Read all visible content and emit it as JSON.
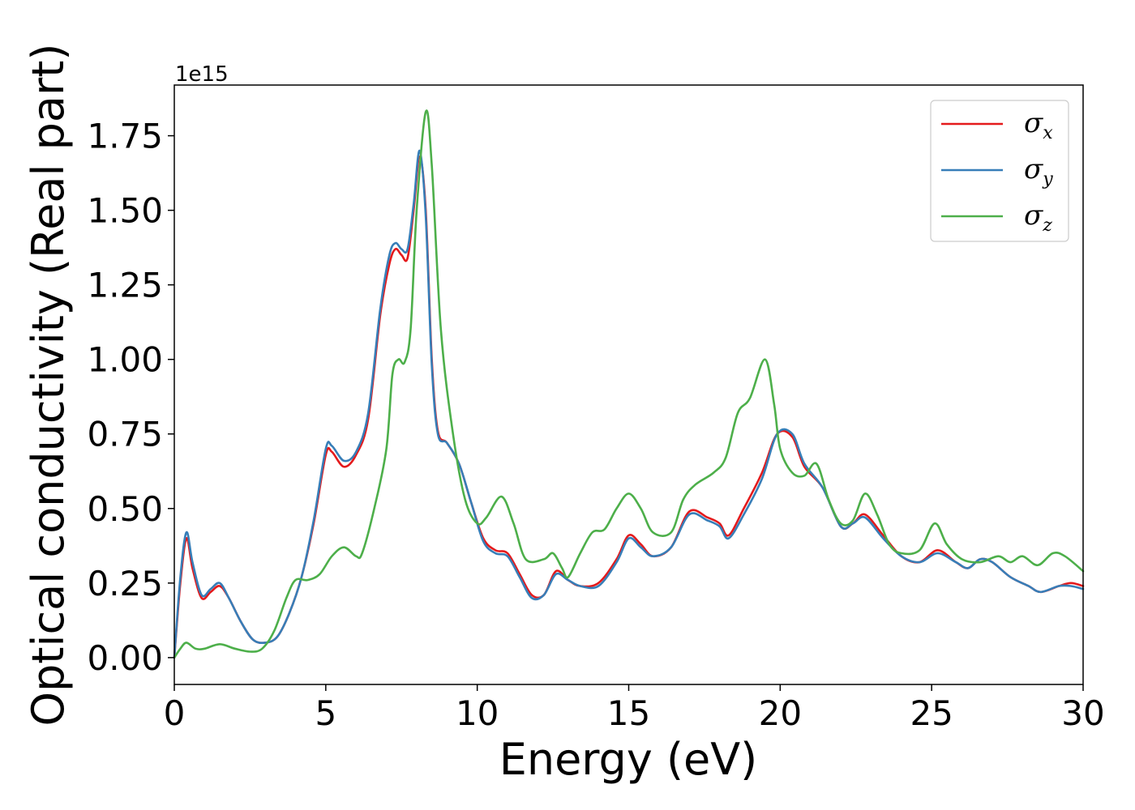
{
  "chart_data": {
    "type": "line",
    "xlabel": "Energy (eV)",
    "ylabel": "Optical conductivity (Real part)",
    "y_offset_text": "1e15",
    "xlim": [
      0,
      30
    ],
    "ylim": [
      -0.09,
      1.92
    ],
    "xticks": [
      0,
      5,
      10,
      15,
      20,
      25,
      30
    ],
    "xtick_labels": [
      "0",
      "5",
      "10",
      "15",
      "20",
      "25",
      "30"
    ],
    "yticks": [
      0.0,
      0.25,
      0.5,
      0.75,
      1.0,
      1.25,
      1.5,
      1.75
    ],
    "ytick_labels": [
      "0.00",
      "0.25",
      "0.50",
      "0.75",
      "1.00",
      "1.25",
      "1.50",
      "1.75"
    ],
    "grid": false,
    "legend_position": "top-right",
    "series": [
      {
        "name": "σx",
        "symbol": "σ",
        "subscript": "x",
        "color": "#e41a1c",
        "points": [
          [
            0,
            0.0
          ],
          [
            0.2,
            0.25
          ],
          [
            0.4,
            0.4
          ],
          [
            0.6,
            0.3
          ],
          [
            0.9,
            0.2
          ],
          [
            1.2,
            0.22
          ],
          [
            1.5,
            0.24
          ],
          [
            1.8,
            0.2
          ],
          [
            2.2,
            0.12
          ],
          [
            2.6,
            0.06
          ],
          [
            3.0,
            0.05
          ],
          [
            3.4,
            0.07
          ],
          [
            3.8,
            0.15
          ],
          [
            4.2,
            0.27
          ],
          [
            4.6,
            0.45
          ],
          [
            5.0,
            0.68
          ],
          [
            5.2,
            0.69
          ],
          [
            5.6,
            0.64
          ],
          [
            6.0,
            0.68
          ],
          [
            6.4,
            0.8
          ],
          [
            6.8,
            1.15
          ],
          [
            7.1,
            1.32
          ],
          [
            7.3,
            1.37
          ],
          [
            7.5,
            1.35
          ],
          [
            7.7,
            1.34
          ],
          [
            7.9,
            1.5
          ],
          [
            8.1,
            1.68
          ],
          [
            8.3,
            1.5
          ],
          [
            8.5,
            1.0
          ],
          [
            8.7,
            0.76
          ],
          [
            9.0,
            0.72
          ],
          [
            9.4,
            0.65
          ],
          [
            9.8,
            0.52
          ],
          [
            10.2,
            0.4
          ],
          [
            10.6,
            0.36
          ],
          [
            11.0,
            0.35
          ],
          [
            11.4,
            0.28
          ],
          [
            11.8,
            0.21
          ],
          [
            12.2,
            0.21
          ],
          [
            12.6,
            0.29
          ],
          [
            13.0,
            0.26
          ],
          [
            13.4,
            0.24
          ],
          [
            14.0,
            0.25
          ],
          [
            14.6,
            0.33
          ],
          [
            15.0,
            0.41
          ],
          [
            15.4,
            0.38
          ],
          [
            15.8,
            0.34
          ],
          [
            16.4,
            0.37
          ],
          [
            17.0,
            0.49
          ],
          [
            17.6,
            0.47
          ],
          [
            18.0,
            0.45
          ],
          [
            18.3,
            0.41
          ],
          [
            18.8,
            0.5
          ],
          [
            19.4,
            0.62
          ],
          [
            19.9,
            0.75
          ],
          [
            20.4,
            0.74
          ],
          [
            20.8,
            0.64
          ],
          [
            21.4,
            0.57
          ],
          [
            22.0,
            0.44
          ],
          [
            22.4,
            0.45
          ],
          [
            22.8,
            0.48
          ],
          [
            23.4,
            0.41
          ],
          [
            24.0,
            0.34
          ],
          [
            24.6,
            0.32
          ],
          [
            25.2,
            0.36
          ],
          [
            25.8,
            0.32
          ],
          [
            26.2,
            0.3
          ],
          [
            26.6,
            0.33
          ],
          [
            27.0,
            0.32
          ],
          [
            27.6,
            0.27
          ],
          [
            28.2,
            0.24
          ],
          [
            28.6,
            0.22
          ],
          [
            29.2,
            0.24
          ],
          [
            29.6,
            0.25
          ],
          [
            30.0,
            0.24
          ]
        ]
      },
      {
        "name": "σy",
        "symbol": "σ",
        "subscript": "y",
        "color": "#377eb8",
        "points": [
          [
            0,
            0.0
          ],
          [
            0.2,
            0.27
          ],
          [
            0.4,
            0.42
          ],
          [
            0.6,
            0.32
          ],
          [
            0.9,
            0.21
          ],
          [
            1.2,
            0.23
          ],
          [
            1.5,
            0.25
          ],
          [
            1.8,
            0.2
          ],
          [
            2.2,
            0.12
          ],
          [
            2.6,
            0.06
          ],
          [
            3.0,
            0.05
          ],
          [
            3.4,
            0.07
          ],
          [
            3.8,
            0.15
          ],
          [
            4.2,
            0.27
          ],
          [
            4.6,
            0.46
          ],
          [
            5.0,
            0.7
          ],
          [
            5.2,
            0.71
          ],
          [
            5.6,
            0.66
          ],
          [
            6.0,
            0.69
          ],
          [
            6.4,
            0.82
          ],
          [
            6.8,
            1.17
          ],
          [
            7.1,
            1.35
          ],
          [
            7.3,
            1.39
          ],
          [
            7.5,
            1.37
          ],
          [
            7.7,
            1.37
          ],
          [
            7.9,
            1.52
          ],
          [
            8.1,
            1.7
          ],
          [
            8.3,
            1.48
          ],
          [
            8.5,
            0.98
          ],
          [
            8.7,
            0.75
          ],
          [
            9.0,
            0.72
          ],
          [
            9.4,
            0.65
          ],
          [
            9.8,
            0.52
          ],
          [
            10.2,
            0.39
          ],
          [
            10.6,
            0.35
          ],
          [
            11.0,
            0.34
          ],
          [
            11.4,
            0.27
          ],
          [
            11.8,
            0.2
          ],
          [
            12.2,
            0.21
          ],
          [
            12.6,
            0.28
          ],
          [
            13.0,
            0.26
          ],
          [
            13.4,
            0.24
          ],
          [
            14.0,
            0.24
          ],
          [
            14.6,
            0.32
          ],
          [
            15.0,
            0.4
          ],
          [
            15.4,
            0.37
          ],
          [
            15.8,
            0.34
          ],
          [
            16.4,
            0.37
          ],
          [
            17.0,
            0.48
          ],
          [
            17.6,
            0.46
          ],
          [
            18.0,
            0.44
          ],
          [
            18.3,
            0.4
          ],
          [
            18.8,
            0.48
          ],
          [
            19.4,
            0.6
          ],
          [
            19.9,
            0.75
          ],
          [
            20.4,
            0.75
          ],
          [
            20.8,
            0.65
          ],
          [
            21.4,
            0.57
          ],
          [
            22.0,
            0.44
          ],
          [
            22.4,
            0.45
          ],
          [
            22.8,
            0.47
          ],
          [
            23.4,
            0.4
          ],
          [
            24.0,
            0.34
          ],
          [
            24.6,
            0.32
          ],
          [
            25.2,
            0.35
          ],
          [
            25.8,
            0.32
          ],
          [
            26.2,
            0.3
          ],
          [
            26.6,
            0.33
          ],
          [
            27.0,
            0.32
          ],
          [
            27.6,
            0.27
          ],
          [
            28.2,
            0.24
          ],
          [
            28.6,
            0.22
          ],
          [
            29.2,
            0.24
          ],
          [
            29.6,
            0.24
          ],
          [
            30.0,
            0.23
          ]
        ]
      },
      {
        "name": "σz",
        "symbol": "σ",
        "subscript": "z",
        "color": "#4daf4a",
        "points": [
          [
            0,
            0.0
          ],
          [
            0.2,
            0.03
          ],
          [
            0.4,
            0.05
          ],
          [
            0.7,
            0.03
          ],
          [
            1.0,
            0.03
          ],
          [
            1.5,
            0.045
          ],
          [
            2.0,
            0.03
          ],
          [
            2.5,
            0.02
          ],
          [
            2.9,
            0.03
          ],
          [
            3.3,
            0.09
          ],
          [
            3.7,
            0.2
          ],
          [
            4.0,
            0.26
          ],
          [
            4.4,
            0.26
          ],
          [
            4.8,
            0.28
          ],
          [
            5.2,
            0.34
          ],
          [
            5.6,
            0.37
          ],
          [
            6.0,
            0.34
          ],
          [
            6.2,
            0.35
          ],
          [
            6.6,
            0.5
          ],
          [
            7.0,
            0.7
          ],
          [
            7.2,
            0.95
          ],
          [
            7.4,
            1.0
          ],
          [
            7.6,
            0.99
          ],
          [
            7.8,
            1.1
          ],
          [
            8.0,
            1.5
          ],
          [
            8.3,
            1.83
          ],
          [
            8.5,
            1.65
          ],
          [
            8.8,
            1.1
          ],
          [
            9.2,
            0.75
          ],
          [
            9.6,
            0.53
          ],
          [
            10.0,
            0.45
          ],
          [
            10.3,
            0.47
          ],
          [
            10.8,
            0.54
          ],
          [
            11.2,
            0.45
          ],
          [
            11.6,
            0.33
          ],
          [
            12.2,
            0.33
          ],
          [
            12.5,
            0.35
          ],
          [
            12.8,
            0.3
          ],
          [
            13.0,
            0.27
          ],
          [
            13.4,
            0.35
          ],
          [
            13.8,
            0.42
          ],
          [
            14.2,
            0.43
          ],
          [
            14.6,
            0.5
          ],
          [
            15.0,
            0.55
          ],
          [
            15.4,
            0.5
          ],
          [
            15.8,
            0.42
          ],
          [
            16.4,
            0.42
          ],
          [
            16.8,
            0.53
          ],
          [
            17.2,
            0.58
          ],
          [
            17.8,
            0.62
          ],
          [
            18.2,
            0.67
          ],
          [
            18.6,
            0.82
          ],
          [
            19.0,
            0.87
          ],
          [
            19.5,
            1.0
          ],
          [
            19.8,
            0.85
          ],
          [
            20.0,
            0.7
          ],
          [
            20.4,
            0.62
          ],
          [
            20.8,
            0.61
          ],
          [
            21.2,
            0.65
          ],
          [
            21.6,
            0.53
          ],
          [
            22.0,
            0.45
          ],
          [
            22.4,
            0.46
          ],
          [
            22.8,
            0.55
          ],
          [
            23.2,
            0.48
          ],
          [
            23.6,
            0.38
          ],
          [
            24.0,
            0.35
          ],
          [
            24.6,
            0.36
          ],
          [
            25.1,
            0.45
          ],
          [
            25.5,
            0.38
          ],
          [
            26.0,
            0.33
          ],
          [
            26.6,
            0.32
          ],
          [
            27.2,
            0.34
          ],
          [
            27.6,
            0.32
          ],
          [
            28.0,
            0.34
          ],
          [
            28.5,
            0.31
          ],
          [
            29.0,
            0.35
          ],
          [
            29.4,
            0.34
          ],
          [
            30.0,
            0.29
          ]
        ]
      }
    ]
  }
}
